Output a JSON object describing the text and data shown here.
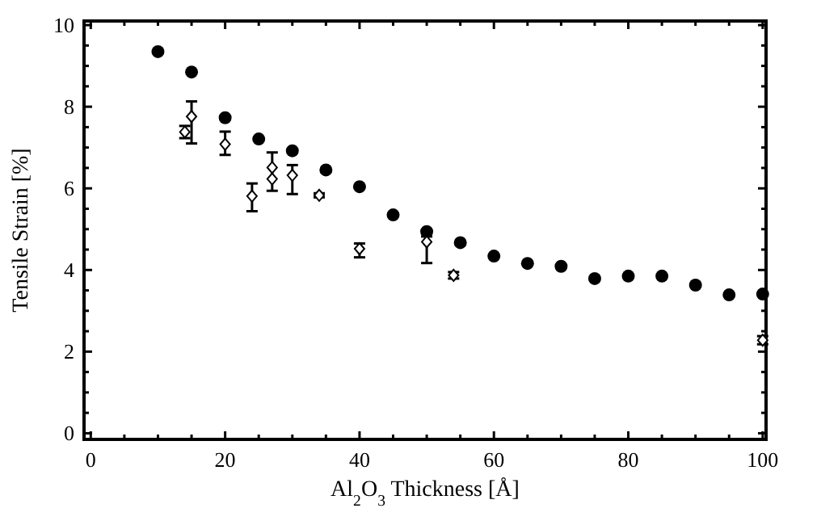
{
  "chart_data": {
    "type": "scatter",
    "xlabel": "Al$_{2}$O$_{3}$ Thickness [Å]",
    "ylabel": "Tensile Strain [%]",
    "xlim": [
      -1,
      100.5
    ],
    "ylim": [
      -0.15,
      10.1
    ],
    "xticks": [
      0,
      {
        "value": 5,
        "label": null
      },
      {
        "value": 10,
        "label": null
      },
      {
        "value": 15,
        "label": null
      },
      20,
      {
        "value": 25,
        "label": null
      },
      {
        "value": 30,
        "label": null
      },
      {
        "value": 35,
        "label": null
      },
      40,
      {
        "value": 45,
        "label": null
      },
      {
        "value": 50,
        "label": null
      },
      {
        "value": 55,
        "label": null
      },
      60,
      {
        "value": 65,
        "label": null
      },
      {
        "value": 70,
        "label": null
      },
      {
        "value": 75,
        "label": null
      },
      80,
      {
        "value": 85,
        "label": null
      },
      {
        "value": 90,
        "label": null
      },
      {
        "value": 95,
        "label": null
      },
      100
    ],
    "yticks": [
      0,
      {
        "value": 0.5,
        "label": null
      },
      {
        "value": 1,
        "label": null
      },
      {
        "value": 1.5,
        "label": null
      },
      2,
      {
        "value": 2.5,
        "label": null
      },
      {
        "value": 3,
        "label": null
      },
      {
        "value": 3.5,
        "label": null
      },
      4,
      {
        "value": 4.5,
        "label": null
      },
      {
        "value": 5,
        "label": null
      },
      {
        "value": 5.5,
        "label": null
      },
      6,
      {
        "value": 6.5,
        "label": null
      },
      {
        "value": 7,
        "label": null
      },
      {
        "value": 7.5,
        "label": null
      },
      8,
      {
        "value": 8.5,
        "label": null
      },
      {
        "value": 9,
        "label": null
      },
      {
        "value": 9.5,
        "label": null
      },
      10
    ],
    "grid": false,
    "series": [
      {
        "color": "#000000",
        "marker": "circle",
        "x": [
          10,
          15,
          20,
          25,
          30,
          35,
          40,
          45,
          50,
          55,
          60,
          65,
          70,
          75,
          80,
          85,
          90,
          95,
          100
        ],
        "values": [
          9.35,
          8.85,
          7.73,
          7.21,
          6.92,
          6.45,
          6.04,
          5.35,
          4.94,
          4.67,
          4.34,
          4.16,
          4.09,
          3.79,
          3.85,
          3.85,
          3.63,
          3.39,
          3.41
        ]
      },
      {
        "color": "#000000",
        "marker": "diamond",
        "x": [
          14,
          15,
          20,
          24,
          27,
          27,
          30,
          34,
          40,
          50,
          54,
          100
        ],
        "values": [
          7.38,
          7.76,
          7.08,
          5.81,
          6.51,
          6.23,
          6.32,
          5.83,
          4.52,
          4.69,
          3.87,
          2.28
        ],
        "errors": [
          0.15,
          [
            7.1,
            8.13
          ],
          [
            6.82,
            7.39
          ],
          [
            5.44,
            6.12
          ],
          [
            5.94,
            6.88
          ],
          null,
          [
            5.86,
            6.57
          ],
          0.05,
          [
            4.31,
            4.65
          ],
          [
            4.17,
            4.82
          ],
          0.08,
          0.1
        ]
      }
    ]
  }
}
